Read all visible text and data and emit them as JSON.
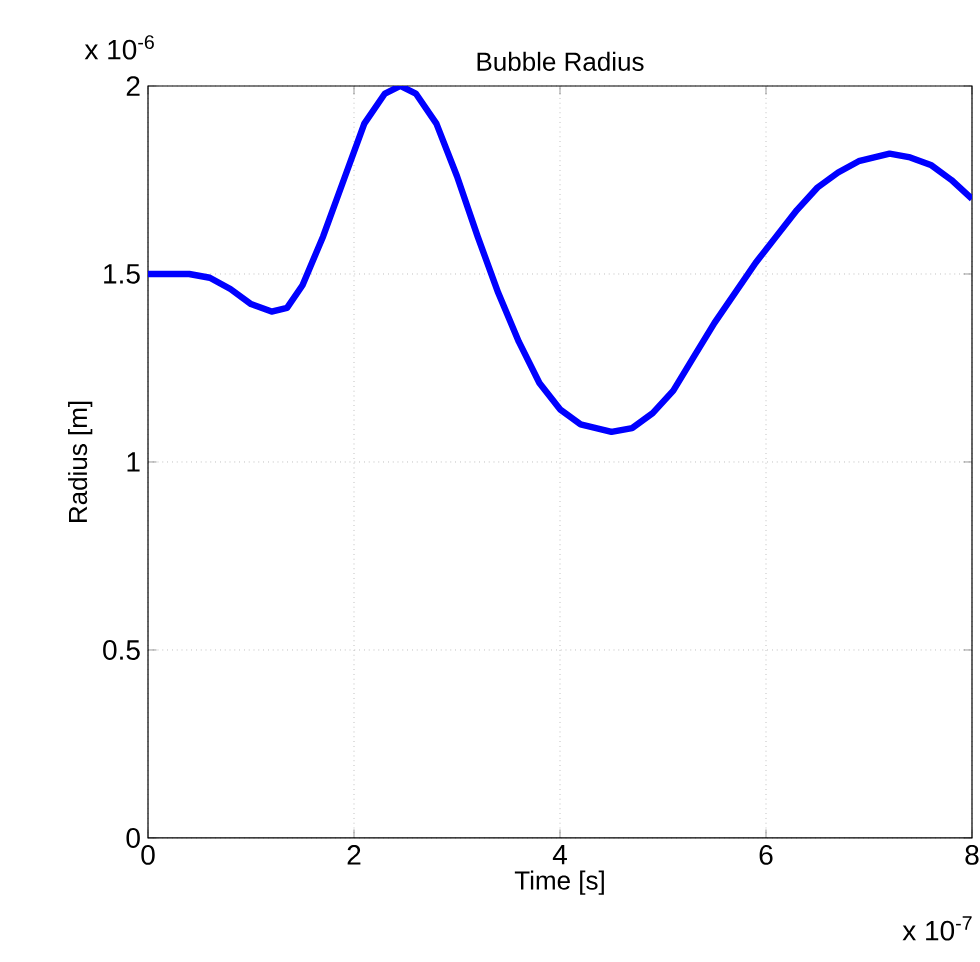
{
  "chart_data": {
    "type": "line",
    "title": "Bubble Radius",
    "xlabel": "Time [s]",
    "ylabel": "Radius [m]",
    "annotations": [
      "x 10$^{-6}$",
      "x 10$^{-7}$"
    ],
    "xlim": [
      0,
      8
    ],
    "ylim": [
      0,
      2
    ],
    "xticks": [
      0,
      2,
      4,
      6,
      8
    ],
    "yticks": [
      0,
      0.5,
      1,
      1.5,
      2
    ],
    "grid": true,
    "line_style": "solid",
    "series": [
      {
        "color": "#0000ff",
        "x": [
          0,
          0.4,
          0.6,
          0.8,
          1.0,
          1.2,
          1.35,
          1.5,
          1.7,
          1.9,
          2.1,
          2.3,
          2.45,
          2.6,
          2.8,
          3.0,
          3.2,
          3.4,
          3.6,
          3.8,
          4.0,
          4.2,
          4.5,
          4.7,
          4.9,
          5.1,
          5.3,
          5.5,
          5.7,
          5.9,
          6.1,
          6.3,
          6.5,
          6.7,
          6.9,
          7.2,
          7.4,
          7.6,
          7.8,
          8.0
        ],
        "values": [
          1.5,
          1.5,
          1.49,
          1.46,
          1.42,
          1.4,
          1.41,
          1.47,
          1.6,
          1.75,
          1.9,
          1.98,
          2.0,
          1.98,
          1.9,
          1.76,
          1.6,
          1.45,
          1.32,
          1.21,
          1.14,
          1.1,
          1.08,
          1.09,
          1.13,
          1.19,
          1.28,
          1.37,
          1.45,
          1.53,
          1.6,
          1.67,
          1.73,
          1.77,
          1.8,
          1.82,
          1.81,
          1.79,
          1.75,
          1.7
        ]
      }
    ]
  }
}
